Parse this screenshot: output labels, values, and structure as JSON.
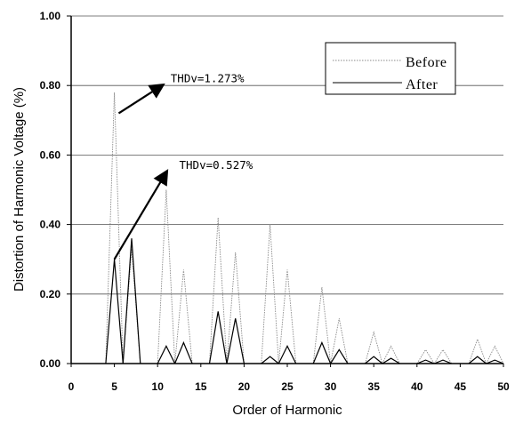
{
  "chart_data": {
    "type": "line",
    "title": "",
    "xlabel": "Order of Harmonic",
    "ylabel": "Distortion of Harmonic Voltage (%)",
    "xlim": [
      0,
      50
    ],
    "ylim": [
      0,
      1.0
    ],
    "x_ticks": [
      "0",
      "5",
      "10",
      "15",
      "20",
      "25",
      "30",
      "35",
      "40",
      "45",
      "50"
    ],
    "y_ticks": [
      "0.00",
      "0.20",
      "0.40",
      "0.60",
      "0.80",
      "1.00"
    ],
    "grid": "horizontal",
    "legend_position": "top-right",
    "series": [
      {
        "name": "Before",
        "color": "#8a8a8a",
        "peaks": [
          [
            5,
            0.78
          ],
          [
            7,
            0.33
          ],
          [
            11,
            0.5
          ],
          [
            13,
            0.27
          ],
          [
            17,
            0.42
          ],
          [
            19,
            0.32
          ],
          [
            23,
            0.4
          ],
          [
            25,
            0.27
          ],
          [
            29,
            0.22
          ],
          [
            31,
            0.13
          ],
          [
            35,
            0.09
          ],
          [
            37,
            0.05
          ],
          [
            41,
            0.04
          ],
          [
            43,
            0.04
          ],
          [
            47,
            0.07
          ],
          [
            49,
            0.05
          ]
        ]
      },
      {
        "name": "After",
        "color": "#000000",
        "peaks": [
          [
            5,
            0.3
          ],
          [
            7,
            0.36
          ],
          [
            11,
            0.05
          ],
          [
            13,
            0.06
          ],
          [
            17,
            0.15
          ],
          [
            19,
            0.13
          ],
          [
            23,
            0.02
          ],
          [
            25,
            0.05
          ],
          [
            29,
            0.06
          ],
          [
            31,
            0.04
          ],
          [
            35,
            0.02
          ],
          [
            37,
            0.015
          ],
          [
            41,
            0.01
          ],
          [
            43,
            0.01
          ],
          [
            47,
            0.02
          ],
          [
            49,
            0.01
          ]
        ]
      }
    ],
    "annotations": [
      {
        "text": "THDv=1.273%",
        "arrow_from": [
          5.5,
          0.72
        ],
        "arrow_to": [
          10.5,
          0.8
        ],
        "text_at": [
          11.5,
          0.81
        ]
      },
      {
        "text": "THDv=0.527%",
        "arrow_from": [
          5.0,
          0.3
        ],
        "arrow_to": [
          11.0,
          0.55
        ],
        "text_at": [
          12.5,
          0.56
        ]
      }
    ]
  }
}
